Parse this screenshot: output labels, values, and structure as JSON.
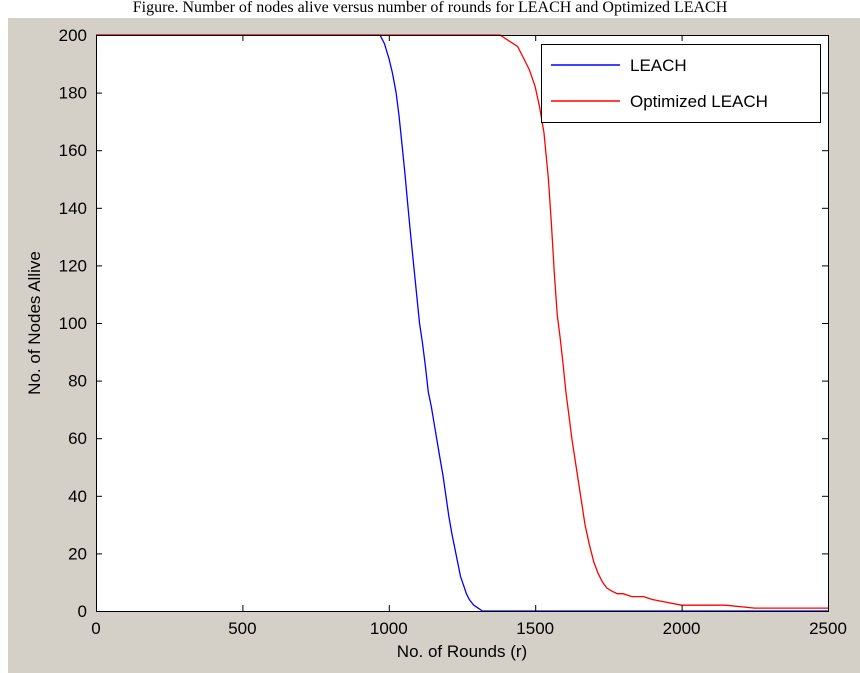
{
  "caption": "Figure. Number of nodes alive versus number of rounds for LEACH and Optimized LEACH",
  "chart_data": {
    "type": "line",
    "title": "",
    "xlabel": "No. of Rounds (r)",
    "ylabel": "No. of  Nodes Allive",
    "xlim": [
      0,
      2500
    ],
    "ylim": [
      0,
      200
    ],
    "xticks": [
      0,
      500,
      1000,
      1500,
      2000,
      2500
    ],
    "yticks": [
      0,
      20,
      40,
      60,
      80,
      100,
      120,
      140,
      160,
      180,
      200
    ],
    "grid": false,
    "legend_position": "top-right",
    "series": [
      {
        "name": "LEACH",
        "color": "#0000ff",
        "x": [
          0,
          970,
          985,
          1000,
          1012,
          1025,
          1035,
          1045,
          1055,
          1065,
          1075,
          1085,
          1095,
          1105,
          1115,
          1125,
          1135,
          1145,
          1155,
          1165,
          1175,
          1185,
          1195,
          1205,
          1215,
          1225,
          1235,
          1245,
          1255,
          1265,
          1275,
          1290,
          1305,
          1320,
          1335,
          1350,
          1500,
          2000,
          2500
        ],
        "y": [
          200,
          200,
          197,
          192,
          187,
          180,
          172,
          162,
          152,
          141,
          130,
          120,
          110,
          100,
          93,
          85,
          76,
          71,
          65,
          59,
          53,
          47,
          40,
          33,
          27,
          22,
          17,
          12,
          9,
          6,
          4,
          2,
          1,
          0,
          0,
          0,
          0,
          0,
          0
        ]
      },
      {
        "name": "Optimized LEACH",
        "color": "#ff0000",
        "x": [
          0,
          1380,
          1410,
          1440,
          1460,
          1480,
          1500,
          1515,
          1530,
          1545,
          1555,
          1565,
          1575,
          1585,
          1595,
          1605,
          1615,
          1625,
          1640,
          1655,
          1670,
          1685,
          1700,
          1715,
          1730,
          1745,
          1760,
          1780,
          1800,
          1830,
          1870,
          1900,
          1950,
          2000,
          2050,
          2150,
          2250,
          2300,
          2350,
          2450,
          2500
        ],
        "y": [
          200,
          200,
          198,
          196,
          192,
          188,
          182,
          175,
          166,
          150,
          135,
          118,
          103,
          95,
          86,
          76,
          68,
          60,
          50,
          40,
          30,
          23,
          17,
          13,
          10,
          8,
          7,
          6,
          6,
          5,
          5,
          4,
          3,
          2,
          2,
          2,
          1,
          1,
          1,
          1,
          1
        ]
      }
    ]
  }
}
